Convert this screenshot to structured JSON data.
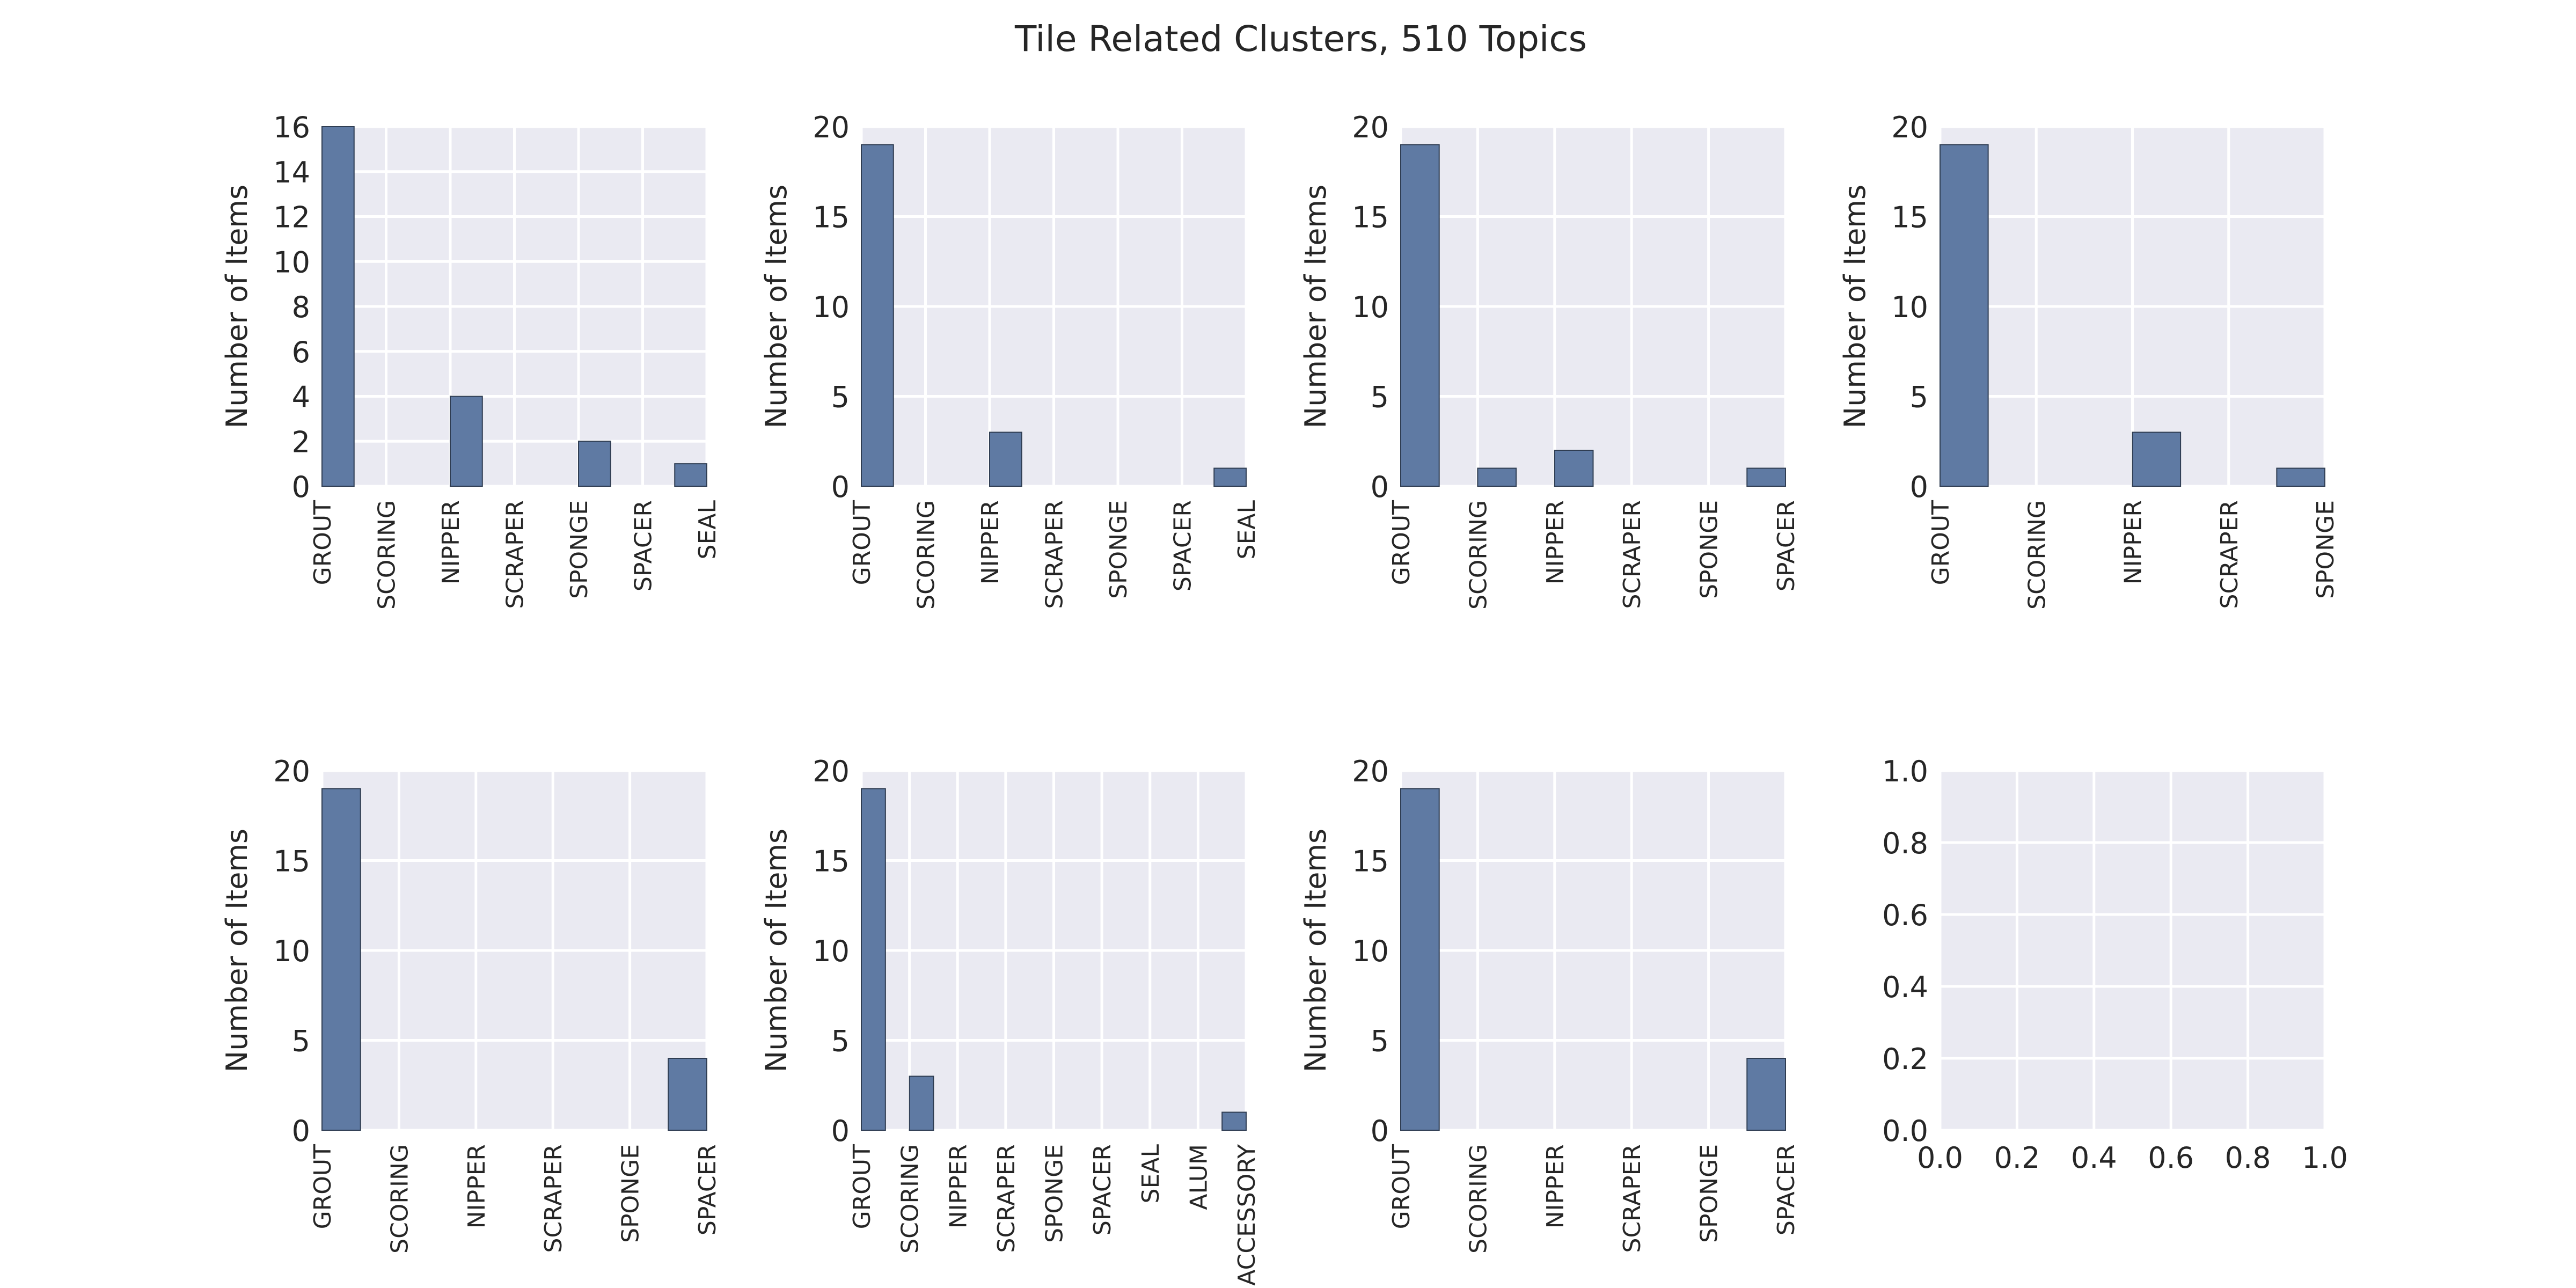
{
  "figure": {
    "title": "Tile Related Clusters, 510 Topics"
  },
  "chart_data": [
    {
      "type": "bar",
      "ylabel": "Number of Items",
      "ylim": [
        0,
        16
      ],
      "yticks": [
        "0",
        "2",
        "4",
        "6",
        "8",
        "10",
        "12",
        "14",
        "16"
      ],
      "categories": [
        "GROUT",
        "SCORING",
        "NIPPER",
        "SCRAPER",
        "SPONGE",
        "SPACER",
        "SEAL"
      ],
      "values": [
        16,
        0,
        4,
        0,
        2,
        0,
        1
      ],
      "grid": true
    },
    {
      "type": "bar",
      "ylabel": "Number of Items",
      "ylim": [
        0,
        20
      ],
      "yticks": [
        "0",
        "5",
        "10",
        "15",
        "20"
      ],
      "categories": [
        "GROUT",
        "SCORING",
        "NIPPER",
        "SCRAPER",
        "SPONGE",
        "SPACER",
        "SEAL"
      ],
      "values": [
        19,
        0,
        3,
        0,
        0,
        0,
        1
      ],
      "grid": true
    },
    {
      "type": "bar",
      "ylabel": "Number of Items",
      "ylim": [
        0,
        20
      ],
      "yticks": [
        "0",
        "5",
        "10",
        "15",
        "20"
      ],
      "categories": [
        "GROUT",
        "SCORING",
        "NIPPER",
        "SCRAPER",
        "SPONGE",
        "SPACER"
      ],
      "values": [
        19,
        1,
        2,
        0,
        0,
        1
      ],
      "grid": true
    },
    {
      "type": "bar",
      "ylabel": "Number of Items",
      "ylim": [
        0,
        20
      ],
      "yticks": [
        "0",
        "5",
        "10",
        "15",
        "20"
      ],
      "categories": [
        "GROUT",
        "SCORING",
        "NIPPER",
        "SCRAPER",
        "SPONGE"
      ],
      "values": [
        19,
        0,
        3,
        0,
        1
      ],
      "grid": true
    },
    {
      "type": "bar",
      "ylabel": "Number of Items",
      "ylim": [
        0,
        20
      ],
      "yticks": [
        "0",
        "5",
        "10",
        "15",
        "20"
      ],
      "categories": [
        "GROUT",
        "SCORING",
        "NIPPER",
        "SCRAPER",
        "SPONGE",
        "SPACER"
      ],
      "values": [
        19,
        0,
        0,
        0,
        0,
        4
      ],
      "grid": true
    },
    {
      "type": "bar",
      "ylabel": "Number of Items",
      "ylim": [
        0,
        20
      ],
      "yticks": [
        "0",
        "5",
        "10",
        "15",
        "20"
      ],
      "categories": [
        "GROUT",
        "SCORING",
        "NIPPER",
        "SCRAPER",
        "SPONGE",
        "SPACER",
        "SEAL",
        "ALUM",
        "ACCESSORY"
      ],
      "values": [
        19,
        3,
        0,
        0,
        0,
        0,
        0,
        0,
        1
      ],
      "grid": true
    },
    {
      "type": "bar",
      "ylabel": "Number of Items",
      "ylim": [
        0,
        20
      ],
      "yticks": [
        "0",
        "5",
        "10",
        "15",
        "20"
      ],
      "categories": [
        "GROUT",
        "SCORING",
        "NIPPER",
        "SCRAPER",
        "SPONGE",
        "SPACER"
      ],
      "values": [
        19,
        0,
        0,
        0,
        0,
        4
      ],
      "grid": true
    },
    {
      "type": "bar",
      "ylabel": "",
      "xlim": [
        0,
        1
      ],
      "ylim": [
        0,
        1
      ],
      "xticks": [
        "0.0",
        "0.2",
        "0.4",
        "0.6",
        "0.8",
        "1.0"
      ],
      "yticks": [
        "0.0",
        "0.2",
        "0.4",
        "0.6",
        "0.8",
        "1.0"
      ],
      "categories": [],
      "values": [],
      "grid": true
    }
  ]
}
